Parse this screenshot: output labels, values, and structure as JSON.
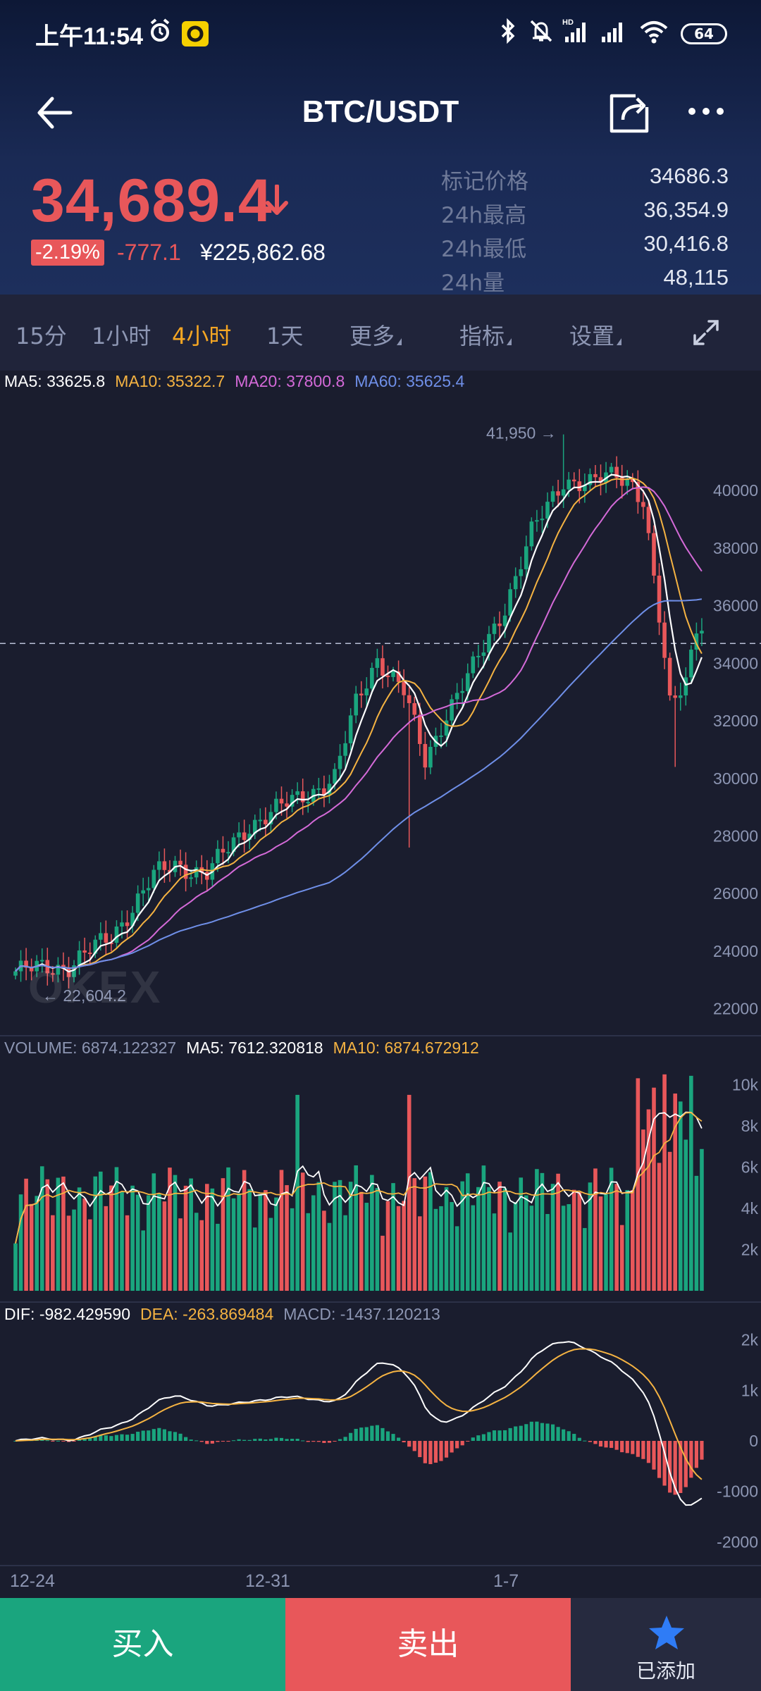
{
  "status_bar": {
    "time": "上午11:54",
    "battery": "64",
    "net_badge": "HD"
  },
  "nav": {
    "title": "BTC/USDT",
    "back_icon": "back-arrow-icon",
    "share_icon": "share-icon",
    "more_icon": "more-dots-icon"
  },
  "ticker": {
    "last_price": "34,689.4",
    "change_pct": "-2.19%",
    "change_abs": "-777.1",
    "cny_price": "¥225,862.68",
    "stats": [
      {
        "label": "标记价格",
        "value": "34686.3"
      },
      {
        "label": "24h最高",
        "value": "36,354.9"
      },
      {
        "label": "24h最低",
        "value": "30,416.8"
      },
      {
        "label": "24h量",
        "value": "48,115"
      }
    ]
  },
  "toolbar": {
    "items": [
      {
        "label": "15分",
        "active": false,
        "dropdown": false
      },
      {
        "label": "1小时",
        "active": false,
        "dropdown": false
      },
      {
        "label": "4小时",
        "active": true,
        "dropdown": false
      },
      {
        "label": "1天",
        "active": false,
        "dropdown": false
      },
      {
        "label": "更多",
        "active": false,
        "dropdown": true
      },
      {
        "label": "指标",
        "active": false,
        "dropdown": true
      },
      {
        "label": "设置",
        "active": false,
        "dropdown": true
      }
    ],
    "expand_icon": "fullscreen-expand-icon"
  },
  "legends": {
    "ma": [
      {
        "label": "MA5: 33625.8",
        "color": "#ffffff"
      },
      {
        "label": "MA10: 35322.7",
        "color": "#f5b342"
      },
      {
        "label": "MA20: 37800.8",
        "color": "#d46ad8"
      },
      {
        "label": "MA60: 35625.4",
        "color": "#6f8fe8"
      }
    ],
    "volume": [
      {
        "label": "VOLUME: 6874.122327",
        "color": "#8d96b3"
      },
      {
        "label": "MA5: 7612.320818",
        "color": "#ffffff"
      },
      {
        "label": "MA10: 6874.672912",
        "color": "#f5b342"
      }
    ],
    "macd": [
      {
        "label": "DIF: -982.429590",
        "color": "#ffffff"
      },
      {
        "label": "DEA: -263.869484",
        "color": "#f5b342"
      },
      {
        "label": "MACD: -1437.120213",
        "color": "#8d96b3"
      }
    ]
  },
  "chart_data": [
    {
      "type": "candlestick",
      "title": "",
      "interval": "4小时",
      "y_ticks": [
        22000,
        24000,
        26000,
        28000,
        30000,
        32000,
        34000,
        36000,
        38000,
        40000
      ],
      "ylim": [
        21600,
        42600
      ],
      "annotations": {
        "high": "41,950 →",
        "low": "← 22,604.2"
      },
      "current_price_line": 34689.4,
      "x_date_labels": [
        "12-24",
        "12-31",
        "1-7"
      ],
      "close_waypoints": [
        [
          0,
          23300
        ],
        [
          10,
          23500
        ],
        [
          18,
          24500
        ],
        [
          26,
          26600
        ],
        [
          30,
          27000
        ],
        [
          36,
          26700
        ],
        [
          44,
          28400
        ],
        [
          52,
          29200
        ],
        [
          60,
          30000
        ],
        [
          64,
          32600
        ],
        [
          68,
          34200
        ],
        [
          73,
          33000
        ],
        [
          77,
          30600
        ],
        [
          81,
          32300
        ],
        [
          86,
          33800
        ],
        [
          92,
          36000
        ],
        [
          97,
          38500
        ],
        [
          103,
          40400
        ],
        [
          108,
          40200
        ],
        [
          113,
          40600
        ],
        [
          116,
          40300
        ],
        [
          118,
          39600
        ],
        [
          121,
          35500
        ],
        [
          123,
          32500
        ],
        [
          126,
          33500
        ],
        [
          128,
          35400
        ]
      ],
      "ma5": 33625.8,
      "ma10": 35322.7,
      "ma20": 37800.8,
      "ma60": 35625.4
    },
    {
      "type": "bar",
      "title": "VOLUME",
      "y_ticks": [
        "2k",
        "4k",
        "6k",
        "8k",
        "10k"
      ],
      "ylim": [
        0,
        11000
      ],
      "last_volume": 6874.122327
    },
    {
      "type": "bar",
      "title": "MACD",
      "y_ticks": [
        "-2000",
        "-1000",
        "0",
        "1k",
        "2k"
      ],
      "ylim": [
        -2300,
        2300
      ],
      "dif": -982.42959,
      "dea": -263.869484,
      "macd": -1437.120213
    }
  ],
  "watermark": "OKEX",
  "bottom_bar": {
    "buy_label": "买入",
    "sell_label": "卖出",
    "fav_label": "已添加",
    "fav_icon": "star-icon"
  },
  "colors": {
    "up": "#1aa57e",
    "down": "#e8575a",
    "accent": "#f5a623",
    "ma5": "#ffffff",
    "ma10": "#f5b342",
    "ma20": "#d46ad8",
    "ma60": "#6f8fe8"
  }
}
